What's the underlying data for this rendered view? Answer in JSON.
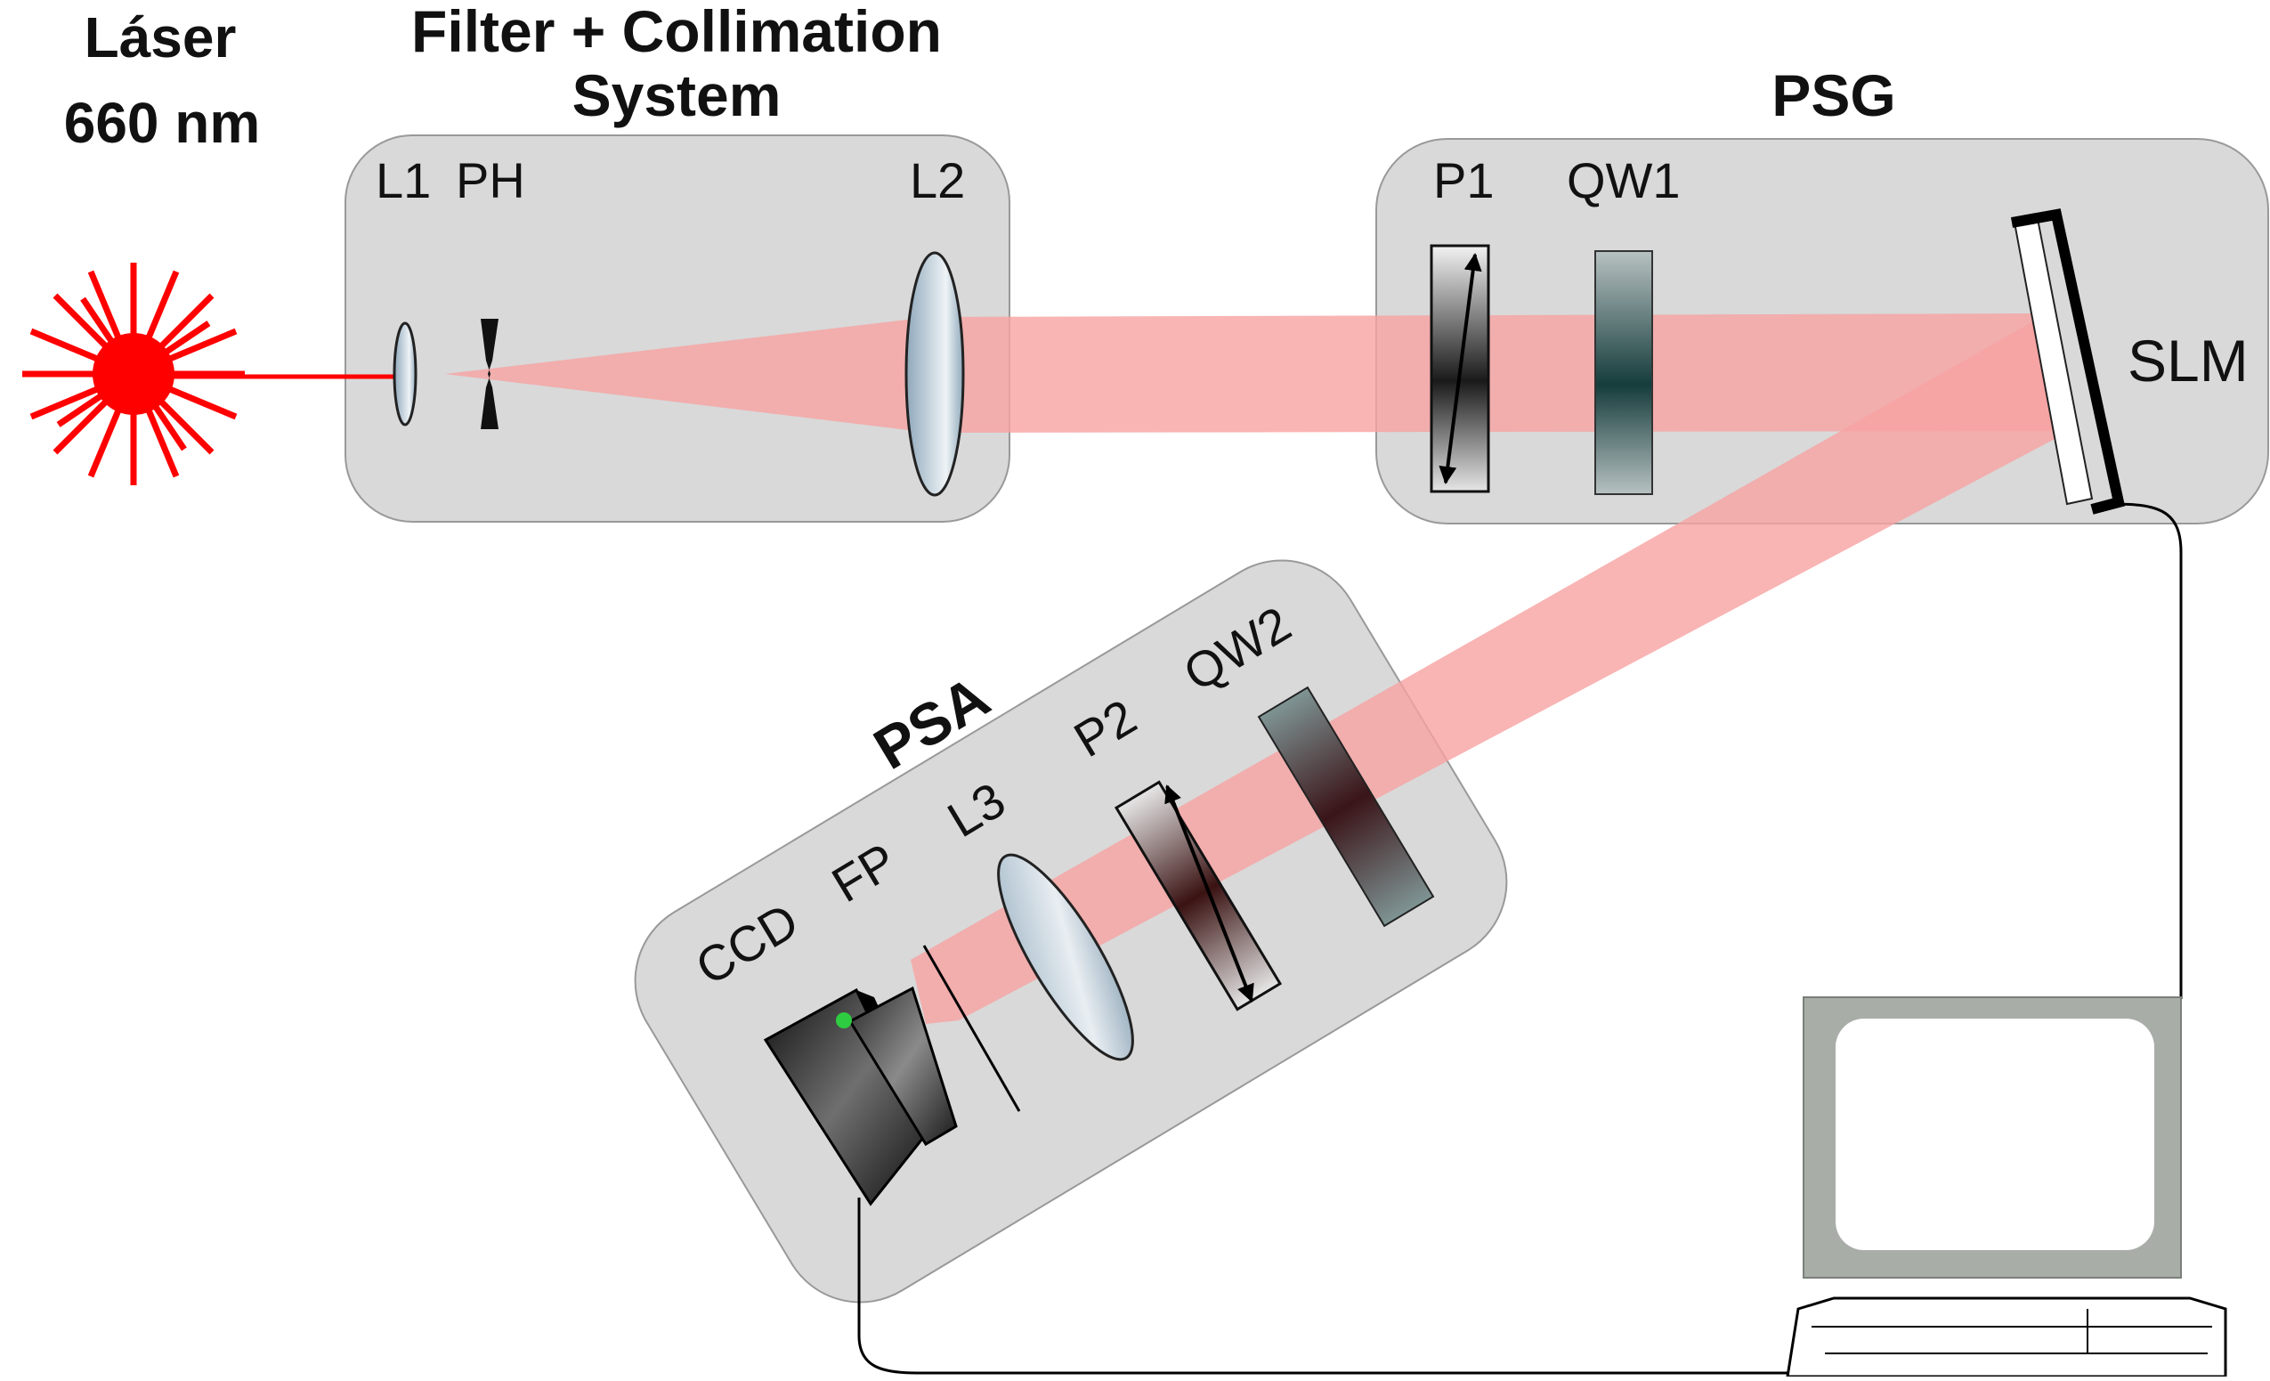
{
  "labels": {
    "laser_line1": "Láser",
    "laser_line2": "660 nm",
    "filter_line1": "Filter + Collimation",
    "filter_line2": "System",
    "psg": "PSG",
    "psa": "PSA",
    "l1": "L1",
    "ph": "PH",
    "l2": "L2",
    "p1": "P1",
    "qw1": "QW1",
    "slm": "SLM",
    "ccd": "CCD",
    "fp": "FP",
    "l3": "L3",
    "p2": "P2",
    "qw2": "QW2"
  },
  "colors": {
    "laser": "#ff0000",
    "beam": "#f7a1a1",
    "box": "#d9d9d9",
    "monitor": "#a8ada8"
  },
  "icons": [
    "laser-icon",
    "computer-icon",
    "camera-icon"
  ]
}
